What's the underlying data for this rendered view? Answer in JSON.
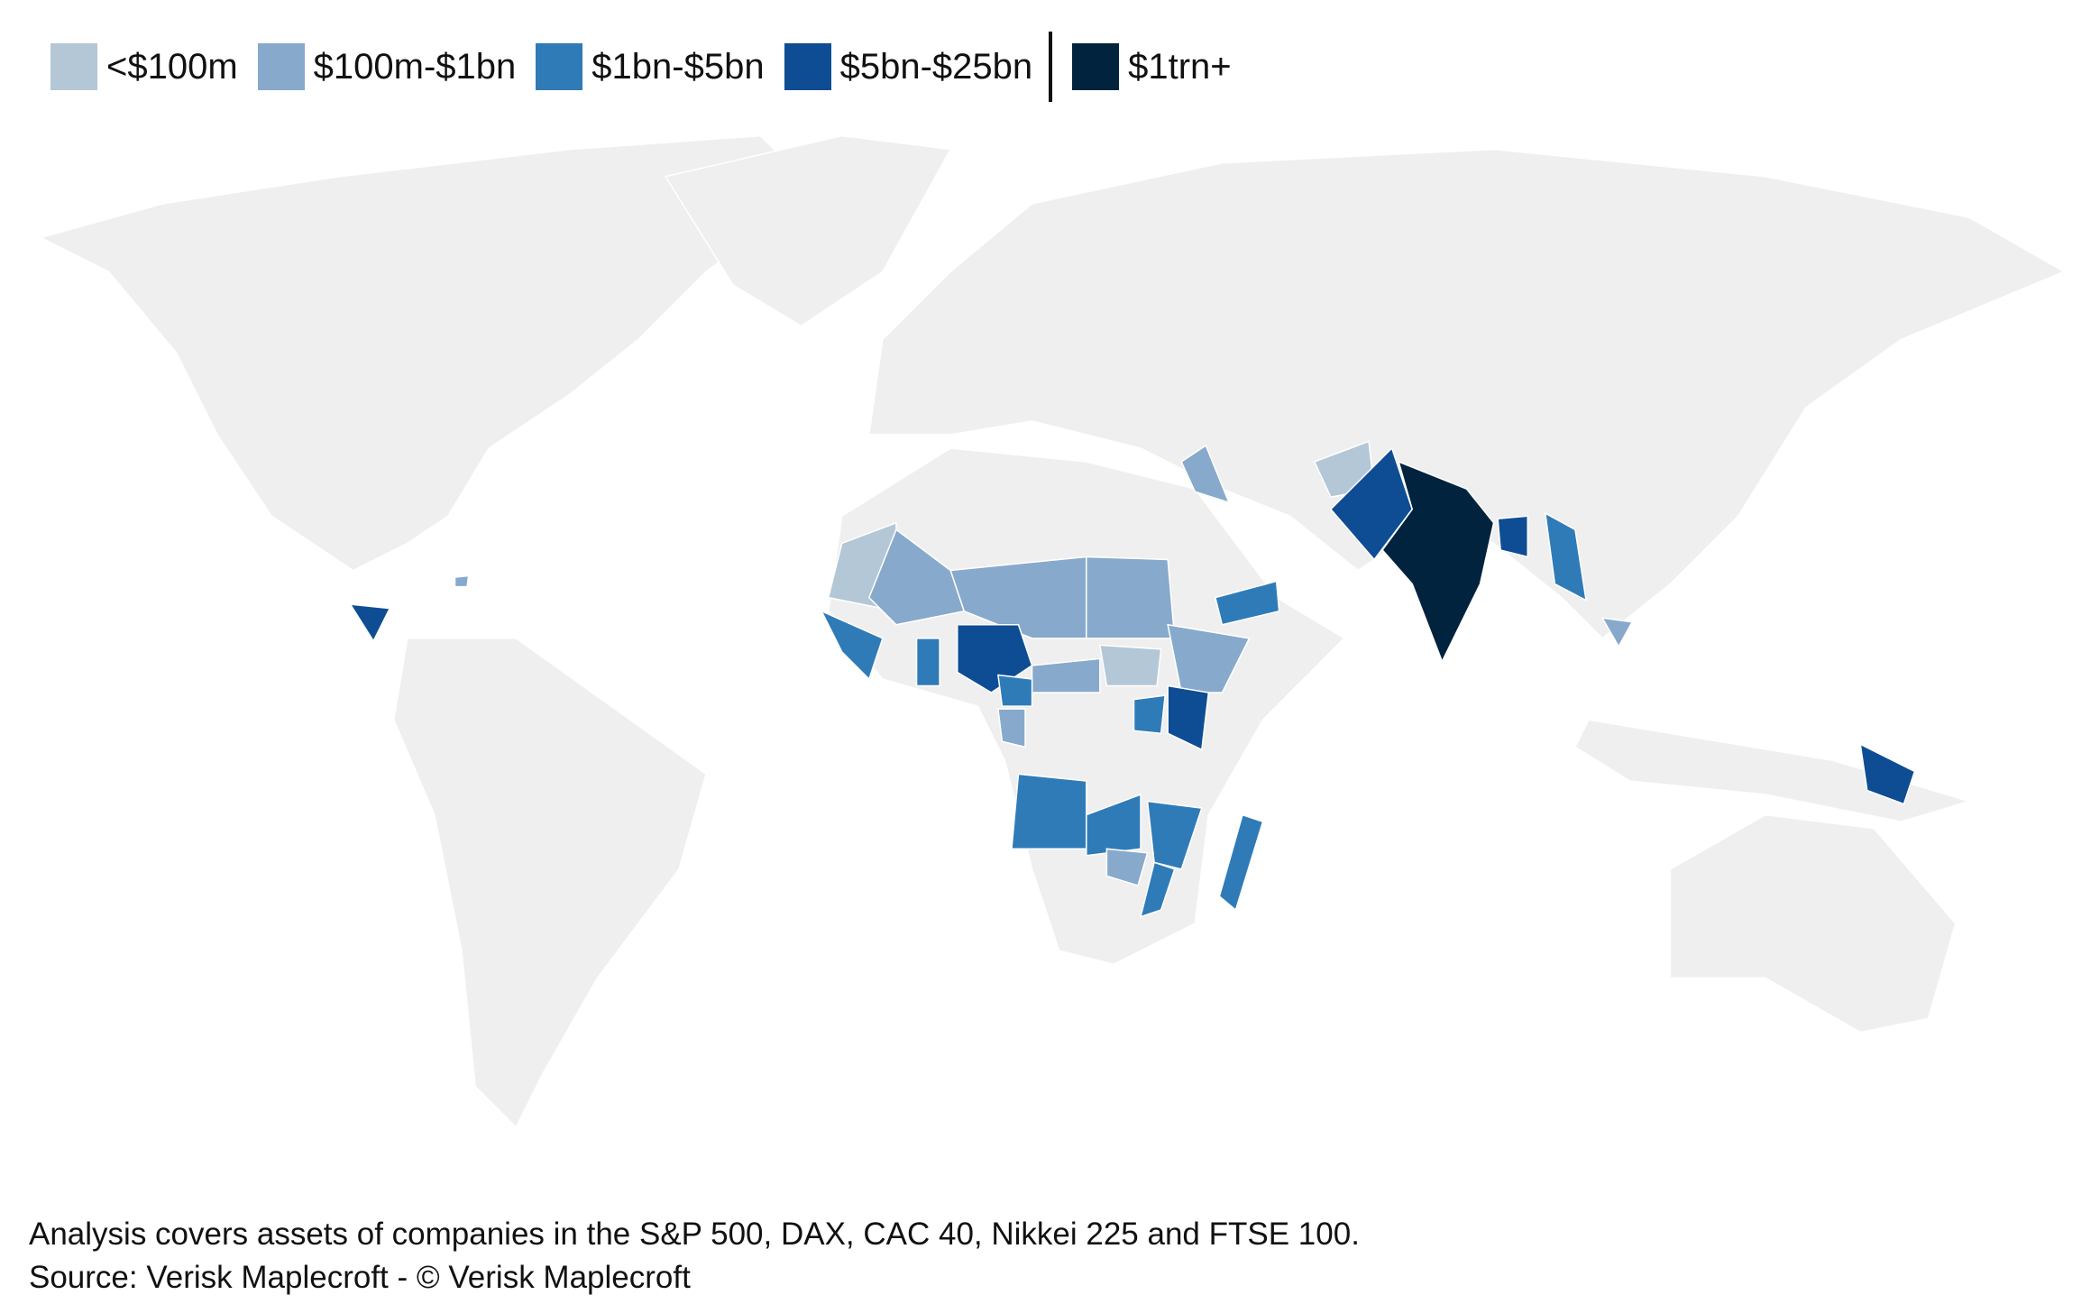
{
  "legend": {
    "items": [
      {
        "label": "<$100m",
        "color": "#b3c7d6"
      },
      {
        "label": "$100m-$1bn",
        "color": "#87a9cc"
      },
      {
        "label": "$1bn-$5bn",
        "color": "#2f7bb8"
      },
      {
        "label": "$5bn-$25bn",
        "color": "#0e4d93"
      },
      {
        "label": "$1trn+",
        "color": "#02233e"
      }
    ]
  },
  "footer": {
    "lines": [
      "Analysis covers assets of companies in the S&P 500, DAX, CAC 40, Nikkei 225 and FTSE 100.",
      "Source: Verisk Maplecroft - © Verisk Maplecroft"
    ]
  }
}
